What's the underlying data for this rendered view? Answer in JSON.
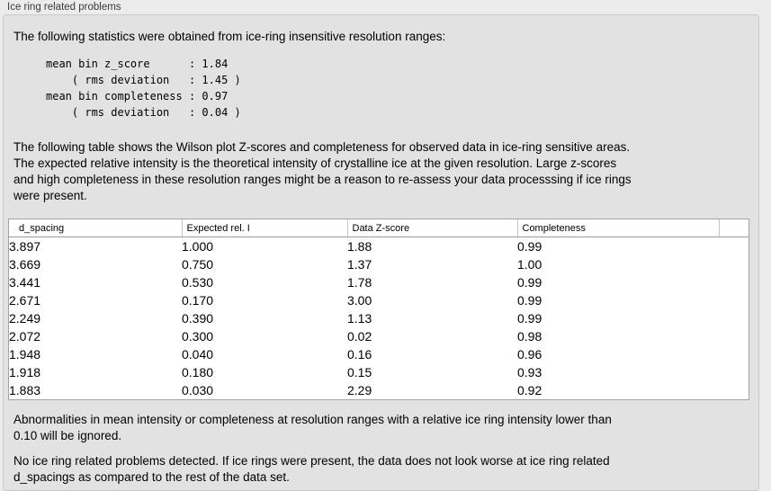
{
  "panel": {
    "title": "Ice ring related problems"
  },
  "intro": "The following statistics were obtained from ice-ring insensitive resolution ranges:",
  "stats_block": "mean bin z_score      : 1.84\n    ( rms deviation   : 1.45 )\nmean bin completeness : 0.97\n    ( rms deviation   : 0.04 )",
  "stats": {
    "mean_bin_z_score": "1.84",
    "z_score_rms_deviation": "1.45",
    "mean_bin_completeness": "0.97",
    "completeness_rms_deviation": "0.04"
  },
  "description": "The following table shows the Wilson plot Z-scores and completeness for observed data in ice-ring sensitive areas.\nThe expected relative intensity is the theoretical intensity of crystalline ice at the given resolution. Large z-scores\nand high completeness in these resolution ranges might be a reason to re-assess your data processsing if ice rings\nwere present.",
  "table": {
    "headers": [
      "d_spacing",
      "Expected rel. I",
      "Data Z-score",
      "Completeness",
      ""
    ],
    "rows": [
      [
        "3.897",
        "1.000",
        "1.88",
        "0.99"
      ],
      [
        "3.669",
        "0.750",
        "1.37",
        "1.00"
      ],
      [
        "3.441",
        "0.530",
        "1.78",
        "0.99"
      ],
      [
        "2.671",
        "0.170",
        "3.00",
        "0.99"
      ],
      [
        "2.249",
        "0.390",
        "1.13",
        "0.99"
      ],
      [
        "2.072",
        "0.300",
        "0.02",
        "0.98"
      ],
      [
        "1.948",
        "0.040",
        "0.16",
        "0.96"
      ],
      [
        "1.918",
        "0.180",
        "0.15",
        "0.93"
      ],
      [
        "1.883",
        "0.030",
        "2.29",
        "0.92"
      ]
    ]
  },
  "note_ignore": "Abnormalities in mean intensity or completeness at resolution ranges with a relative ice ring intensity lower than\n0.10 will be ignored.",
  "conclusion": "No ice ring related problems detected. If ice rings were present, the data does not look worse at ice ring related\nd_spacings as compared to the rest of the data set.",
  "colors": {
    "page_background": "#ececec",
    "panel_background": "#e2e2e2",
    "table_background": "#ffffff",
    "table_border": "#a2a2a2",
    "text": "#000000"
  }
}
